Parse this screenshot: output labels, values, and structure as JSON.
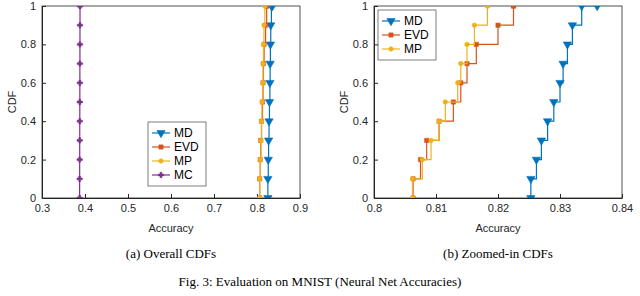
{
  "chart_data": [
    {
      "type": "line",
      "title": "(a) Overall CDFs",
      "x_label": "Accuracy",
      "y_label": "CDF",
      "xlim": [
        0.3,
        0.9
      ],
      "xticks": [
        0.3,
        0.4,
        0.5,
        0.6,
        0.7,
        0.8,
        0.9
      ],
      "ylim": [
        0,
        1
      ],
      "yticks": [
        0,
        0.2,
        0.4,
        0.6,
        0.8,
        1
      ],
      "grid": false,
      "legend": "south",
      "line_style": "step",
      "series": [
        {
          "name": "MD",
          "color": "#0072bd",
          "marker": "triangle-down",
          "x": [
            0.8253,
            0.8253,
            0.8262,
            0.827,
            0.828,
            0.829,
            0.83,
            0.8305,
            0.8312,
            0.832,
            0.8335,
            0.836
          ],
          "values": [
            0,
            0.1,
            0.2,
            0.3,
            0.4,
            0.5,
            0.6,
            0.7,
            0.8,
            0.9,
            1,
            1
          ]
        },
        {
          "name": "EVD",
          "color": "#d95319",
          "marker": "square",
          "x": [
            0.8063,
            0.8063,
            0.8075,
            0.8085,
            0.8105,
            0.8128,
            0.814,
            0.815,
            0.8165,
            0.82,
            0.8225,
            0.8225
          ],
          "values": [
            0,
            0.1,
            0.2,
            0.3,
            0.4,
            0.5,
            0.6,
            0.7,
            0.8,
            0.9,
            1,
            1
          ]
        },
        {
          "name": "MP",
          "color": "#edb120",
          "marker": "circle",
          "x": [
            0.8062,
            0.8062,
            0.8078,
            0.8092,
            0.8105,
            0.8115,
            0.8135,
            0.814,
            0.815,
            0.8162,
            0.8183,
            0.8183
          ],
          "values": [
            0,
            0.1,
            0.2,
            0.3,
            0.4,
            0.5,
            0.6,
            0.7,
            0.8,
            0.9,
            1,
            1
          ]
        },
        {
          "name": "MC",
          "color": "#7e2f8e",
          "marker": "plus",
          "x": [
            0.3875,
            0.3875,
            0.3876,
            0.3877,
            0.3878,
            0.3879,
            0.388,
            0.3881,
            0.3882,
            0.3883,
            0.3884,
            0.3884
          ],
          "values": [
            0,
            0.1,
            0.2,
            0.3,
            0.4,
            0.5,
            0.6,
            0.7,
            0.8,
            0.9,
            1,
            1
          ]
        }
      ]
    },
    {
      "type": "line",
      "title": "(b) Zoomed-in CDFs",
      "x_label": "Accuracy",
      "y_label": "CDF",
      "xlim": [
        0.8,
        0.84
      ],
      "xticks": [
        0.8,
        0.81,
        0.82,
        0.83,
        0.84
      ],
      "ylim": [
        0,
        1
      ],
      "yticks": [
        0,
        0.2,
        0.4,
        0.6,
        0.8,
        1
      ],
      "grid": false,
      "legend": "northwest",
      "line_style": "step",
      "series": [
        {
          "name": "MD",
          "color": "#0072bd",
          "marker": "triangle-down",
          "x": [
            0.8253,
            0.8253,
            0.8262,
            0.827,
            0.828,
            0.829,
            0.83,
            0.8305,
            0.8312,
            0.832,
            0.8335,
            0.836
          ],
          "values": [
            0,
            0.1,
            0.2,
            0.3,
            0.4,
            0.5,
            0.6,
            0.7,
            0.8,
            0.9,
            1,
            1
          ]
        },
        {
          "name": "EVD",
          "color": "#d95319",
          "marker": "square",
          "x": [
            0.8063,
            0.8063,
            0.8075,
            0.8085,
            0.8105,
            0.8128,
            0.814,
            0.815,
            0.8165,
            0.82,
            0.8225,
            0.8225
          ],
          "values": [
            0,
            0.1,
            0.2,
            0.3,
            0.4,
            0.5,
            0.6,
            0.7,
            0.8,
            0.9,
            1,
            1
          ]
        },
        {
          "name": "MP",
          "color": "#edb120",
          "marker": "circle",
          "x": [
            0.8062,
            0.8062,
            0.8078,
            0.8092,
            0.8105,
            0.8115,
            0.8135,
            0.814,
            0.815,
            0.8162,
            0.8183,
            0.8183
          ],
          "values": [
            0,
            0.1,
            0.2,
            0.3,
            0.4,
            0.5,
            0.6,
            0.7,
            0.8,
            0.9,
            1,
            1
          ]
        }
      ]
    }
  ],
  "caption": "Fig. 3: Evaluation on MNIST (Neural Net Accuracies)"
}
